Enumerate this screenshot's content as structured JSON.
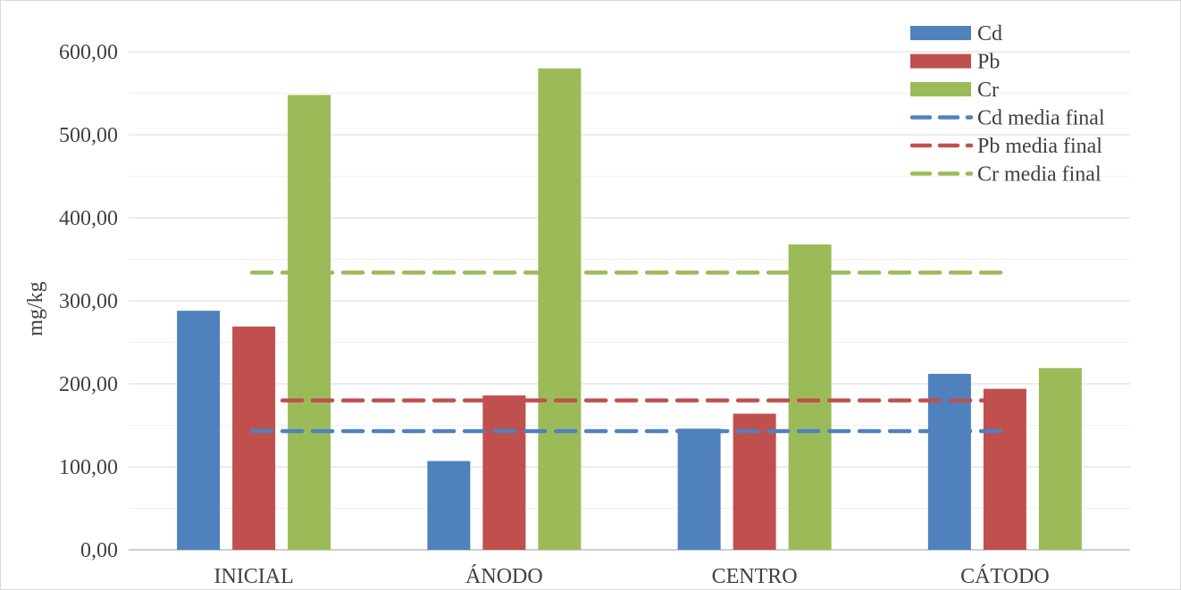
{
  "chart_data": {
    "type": "bar",
    "categories": [
      "INICIAL",
      "ÁNODO",
      "CENTRO",
      "CÁTODO"
    ],
    "series": [
      {
        "name": "Cd",
        "values": [
          288,
          107,
          146,
          212
        ],
        "color": "#4F81BD"
      },
      {
        "name": "Pb",
        "values": [
          269,
          186,
          164,
          194
        ],
        "color": "#C0504D"
      },
      {
        "name": "Cr",
        "values": [
          548,
          580,
          368,
          219
        ],
        "color": "#9BBB59"
      }
    ],
    "reference_lines": [
      {
        "name": "Cd media final",
        "value": 143,
        "color": "#4F81BD",
        "style": "dashed"
      },
      {
        "name": "Pb media final",
        "value": 180,
        "color": "#C0504D",
        "style": "dashed"
      },
      {
        "name": "Cr media final",
        "value": 334,
        "color": "#9BBB59",
        "style": "dashed"
      }
    ],
    "ylabel": "mg/kg",
    "ylim": [
      0,
      600
    ],
    "yticks": [
      "0,00",
      "100,00",
      "200,00",
      "300,00",
      "400,00",
      "500,00",
      "600,00"
    ],
    "grid": true,
    "legend_position": "top-right"
  }
}
